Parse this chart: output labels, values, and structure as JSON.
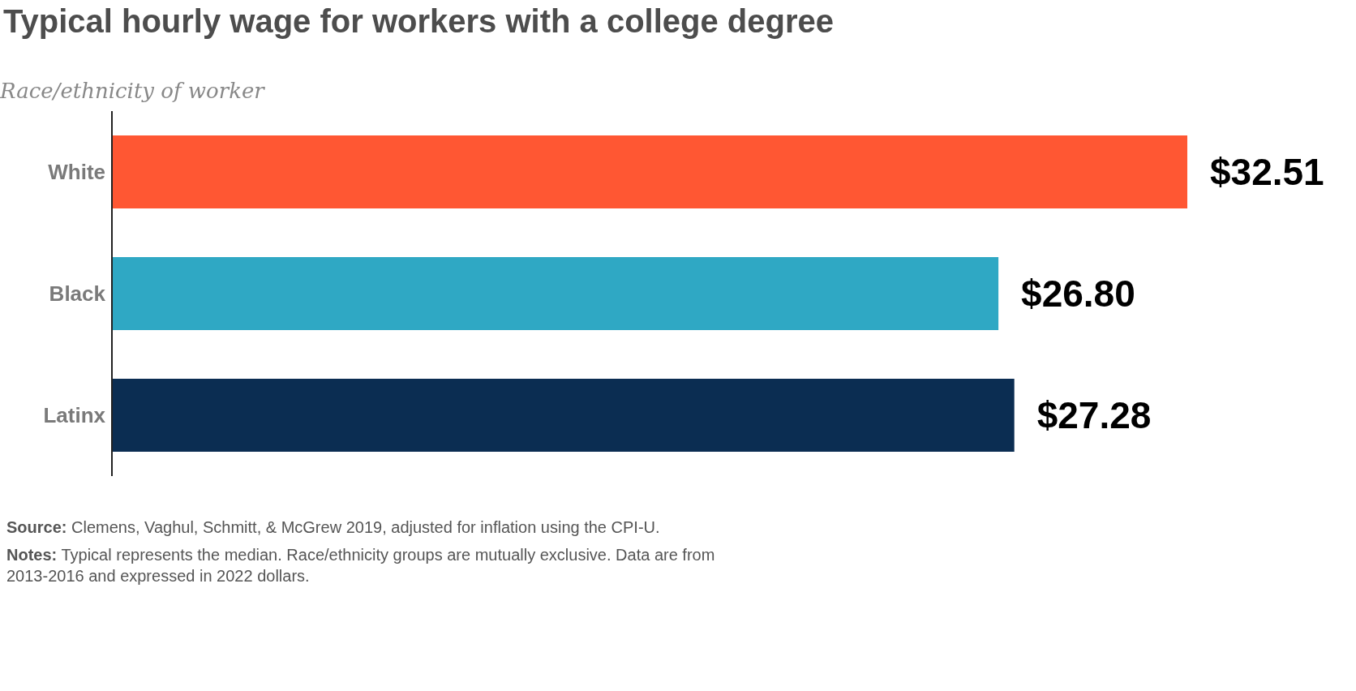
{
  "chart_data": {
    "type": "bar",
    "orientation": "horizontal",
    "title": "Typical hourly wage for workers with a college degree",
    "ylabel": "Race/ethnicity of worker",
    "categories": [
      "White",
      "Black",
      "Latinx"
    ],
    "values": [
      32.51,
      26.8,
      27.28
    ],
    "colors": [
      "#ff5733",
      "#2fa8c4",
      "#0b2d52"
    ],
    "value_labels": [
      "$32.51",
      "$26.80",
      "$27.28"
    ],
    "tick_labels": "y",
    "grid": false,
    "legend": false,
    "annotations": [
      "Source: Clemens, Vaghul, Schmitt, & McGrew 2019, adjusted for inflation using the CPI-U.",
      "Notes: Typical represents the median. Race/ethnicity groups are mutually exclusive. Data are from 2013-2016 and expressed in 2022 dollars."
    ]
  }
}
